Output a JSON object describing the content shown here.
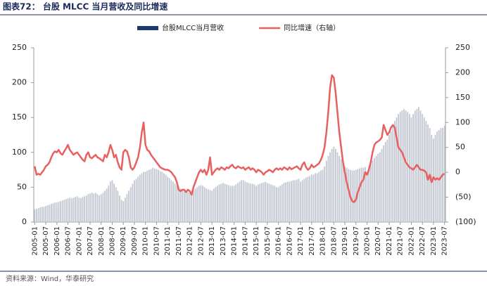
{
  "chart_data": {
    "type": "bar",
    "title": "图表72：  台股 MLCC 当月营收及同比增速",
    "source": "资料来源：Wind，华泰研究",
    "categories": [
      "2005-01",
      null,
      null,
      null,
      null,
      null,
      "2005-07",
      null,
      null,
      null,
      null,
      null,
      "2006-01",
      null,
      null,
      null,
      null,
      null,
      "2006-07",
      null,
      null,
      null,
      null,
      null,
      "2007-01",
      null,
      null,
      null,
      null,
      null,
      "2007-07",
      null,
      null,
      null,
      null,
      null,
      "2008-01",
      null,
      null,
      null,
      null,
      null,
      "2008-07",
      null,
      null,
      null,
      null,
      null,
      "2009-01",
      null,
      null,
      null,
      null,
      null,
      "2009-07",
      null,
      null,
      null,
      null,
      null,
      "2010-01",
      null,
      null,
      null,
      null,
      null,
      "2010-07",
      null,
      null,
      null,
      null,
      null,
      "2011-01",
      null,
      null,
      null,
      null,
      null,
      "2011-07",
      null,
      null,
      null,
      null,
      null,
      "2012-01",
      null,
      null,
      null,
      null,
      null,
      "2012-07",
      null,
      null,
      null,
      null,
      null,
      "2013-01",
      null,
      null,
      null,
      null,
      null,
      "2013-07",
      null,
      null,
      null,
      null,
      null,
      "2014-01",
      null,
      null,
      null,
      null,
      null,
      "2014-07",
      null,
      null,
      null,
      null,
      null,
      "2015-01",
      null,
      null,
      null,
      null,
      null,
      "2015-07",
      null,
      null,
      null,
      null,
      null,
      "2016-01",
      null,
      null,
      null,
      null,
      null,
      "2016-07",
      null,
      null,
      null,
      null,
      null,
      "2017-01",
      null,
      null,
      null,
      null,
      null,
      "2017-07",
      null,
      null,
      null,
      null,
      null,
      "2018-01",
      null,
      null,
      null,
      null,
      null,
      "2018-07",
      null,
      null,
      null,
      null,
      null,
      "2019-01",
      null,
      null,
      null,
      null,
      null,
      "2019-07",
      null,
      null,
      null,
      null,
      null,
      "2020-01",
      null,
      null,
      null,
      null,
      null,
      "2020-07",
      null,
      null,
      null,
      null,
      null,
      "2021-01",
      null,
      null,
      null,
      null,
      null,
      "2021-07",
      null,
      null,
      null,
      null,
      null,
      "2022-01",
      null,
      null,
      null,
      null,
      null,
      "2022-07",
      null,
      null,
      null,
      null,
      null,
      "2023-01",
      null,
      null,
      null,
      null,
      null,
      "2023-07"
    ],
    "series": [
      {
        "name": "台股MLCC当月营收",
        "type": "bar",
        "color": "#c3c8d2",
        "values": [
          18,
          19,
          20,
          21,
          22,
          22,
          23,
          24,
          25,
          26,
          27,
          28,
          28,
          29,
          30,
          31,
          32,
          33,
          34,
          35,
          34,
          35,
          36,
          37,
          35,
          34,
          36,
          37,
          38,
          40,
          41,
          42,
          41,
          42,
          40,
          38,
          40,
          42,
          45,
          48,
          52,
          58,
          60,
          55,
          50,
          45,
          38,
          32,
          30,
          35,
          40,
          45,
          50,
          55,
          60,
          62,
          65,
          68,
          70,
          72,
          72,
          74,
          75,
          76,
          78,
          77,
          76,
          75,
          73,
          72,
          70,
          68,
          65,
          63,
          60,
          58,
          55,
          52,
          50,
          48,
          46,
          45,
          44,
          43,
          42,
          44,
          46,
          48,
          50,
          52,
          53,
          52,
          50,
          48,
          47,
          46,
          45,
          48,
          50,
          52,
          54,
          55,
          56,
          55,
          54,
          53,
          52,
          52,
          52,
          54,
          56,
          58,
          60,
          60,
          58,
          57,
          56,
          55,
          55,
          54,
          52,
          54,
          55,
          56,
          57,
          58,
          56,
          55,
          54,
          53,
          52,
          50,
          50,
          52,
          54,
          56,
          57,
          58,
          58,
          59,
          60,
          60,
          61,
          62,
          58,
          60,
          62,
          64,
          65,
          66,
          68,
          68,
          70,
          70,
          72,
          74,
          75,
          80,
          88,
          95,
          100,
          105,
          108,
          105,
          100,
          95,
          90,
          85,
          80,
          78,
          76,
          75,
          74,
          74,
          75,
          76,
          77,
          78,
          78,
          79,
          72,
          80,
          85,
          88,
          92,
          95,
          98,
          100,
          105,
          110,
          115,
          118,
          125,
          130,
          138,
          145,
          150,
          155,
          158,
          160,
          162,
          160,
          158,
          155,
          150,
          155,
          160,
          162,
          165,
          160,
          155,
          150,
          145,
          140,
          135,
          125,
          120,
          125,
          130,
          132,
          135,
          135,
          138
        ]
      },
      {
        "name": "同比增速（右轴）",
        "type": "line",
        "axis": "y2",
        "color": "#e8605f",
        "values": [
          12,
          -5,
          -3,
          -5,
          0,
          5,
          12,
          15,
          20,
          30,
          38,
          42,
          40,
          45,
          38,
          35,
          42,
          48,
          55,
          45,
          40,
          35,
          38,
          40,
          35,
          30,
          25,
          22,
          35,
          40,
          30,
          28,
          32,
          35,
          30,
          28,
          25,
          22,
          35,
          30,
          40,
          55,
          45,
          30,
          35,
          20,
          10,
          5,
          40,
          45,
          42,
          30,
          10,
          5,
          10,
          20,
          30,
          50,
          80,
          100,
          55,
          45,
          42,
          35,
          30,
          25,
          20,
          15,
          10,
          8,
          6,
          5,
          5,
          3,
          0,
          -5,
          -10,
          -20,
          -35,
          -38,
          -35,
          -35,
          -40,
          -35,
          -38,
          -45,
          -30,
          -20,
          -10,
          0,
          5,
          0,
          5,
          -5,
          5,
          30,
          -5,
          0,
          5,
          8,
          5,
          10,
          8,
          5,
          10,
          8,
          12,
          15,
          10,
          8,
          12,
          10,
          8,
          10,
          5,
          8,
          10,
          5,
          8,
          5,
          0,
          5,
          3,
          0,
          -5,
          0,
          2,
          5,
          3,
          0,
          5,
          8,
          5,
          8,
          5,
          10,
          8,
          5,
          10,
          6,
          8,
          10,
          12,
          8,
          5,
          15,
          20,
          10,
          5,
          8,
          15,
          10,
          12,
          15,
          18,
          25,
          35,
          50,
          80,
          120,
          170,
          195,
          190,
          160,
          120,
          80,
          50,
          20,
          0,
          -20,
          -35,
          -50,
          -58,
          -60,
          -55,
          -40,
          -30,
          -20,
          -15,
          0,
          -5,
          5,
          20,
          40,
          55,
          60,
          62,
          65,
          70,
          95,
          85,
          75,
          80,
          90,
          95,
          90,
          70,
          50,
          45,
          40,
          30,
          20,
          15,
          10,
          8,
          5,
          10,
          15,
          10,
          5,
          5,
          3,
          0,
          -15,
          -5,
          -20,
          -10,
          -15,
          -12,
          -15,
          -10,
          -5,
          -3
        ]
      }
    ],
    "ylim": [
      0,
      250
    ],
    "yticks": [
      0,
      50,
      100,
      150,
      200,
      250
    ],
    "y2lim": [
      -100,
      250
    ],
    "y2ticks": [
      {
        "value": -100,
        "label": "(100)"
      },
      {
        "value": -50,
        "label": "(50)"
      },
      0,
      50,
      100,
      150,
      200,
      250
    ],
    "legend": "top",
    "grid": false
  }
}
